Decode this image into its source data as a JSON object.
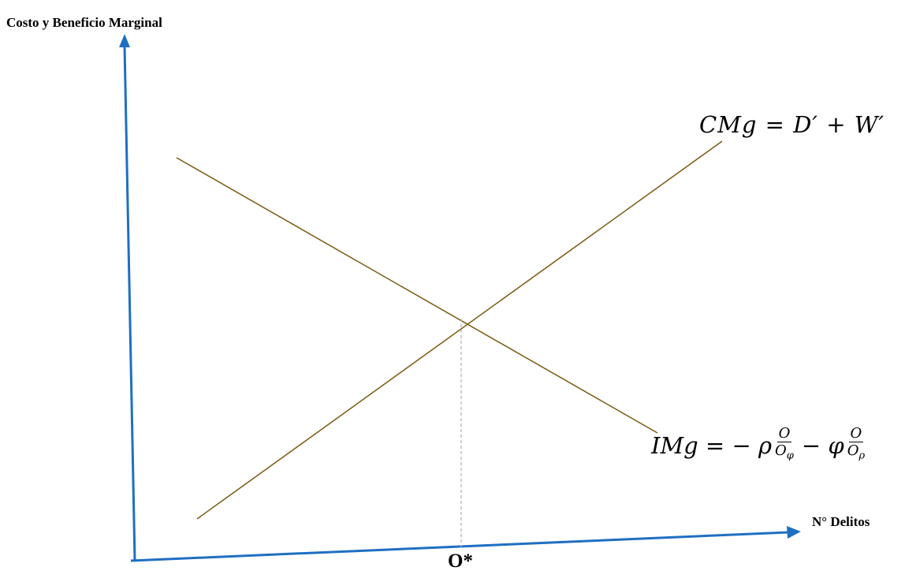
{
  "axes": {
    "y_label": "Costo y Beneficio Marginal",
    "x_label": "N° Delitos"
  },
  "curves": {
    "cmg_label": "CMg = D′ + W′",
    "img_label": {
      "lhs": "IMg = − ρ",
      "frac1_num": "O",
      "frac1_den": "O",
      "frac1_sub": "φ",
      "mid": "− φ",
      "frac2_num": "O",
      "frac2_den": "O",
      "frac2_sub": "ρ"
    }
  },
  "equilibrium": {
    "label": "O*"
  },
  "colors": {
    "axis": "#1f6fc1",
    "curve": "#7a5a12",
    "guide": "#b0b0b0"
  }
}
